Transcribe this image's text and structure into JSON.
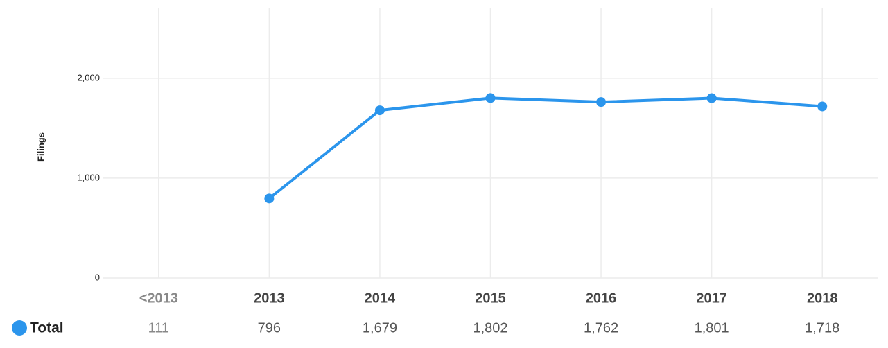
{
  "chart_data": {
    "type": "line",
    "y_label": "Filings",
    "categories": [
      "<2013",
      "2013",
      "2014",
      "2015",
      "2016",
      "2017",
      "2018"
    ],
    "series": [
      {
        "name": "Total",
        "color": "#2b95ec",
        "values": [
          null,
          796,
          1679,
          1802,
          1762,
          1801,
          1718
        ]
      }
    ],
    "ylim": [
      0,
      2700
    ],
    "yticks": [
      0,
      {
        "value": 1000,
        "label": "1,000"
      },
      {
        "value": 2000,
        "label": "2,000"
      }
    ],
    "grid": true
  },
  "table": {
    "row_label": "Total",
    "cells": [
      "111",
      "796",
      "1,679",
      "1,802",
      "1,762",
      "1,801",
      "1,718"
    ]
  }
}
